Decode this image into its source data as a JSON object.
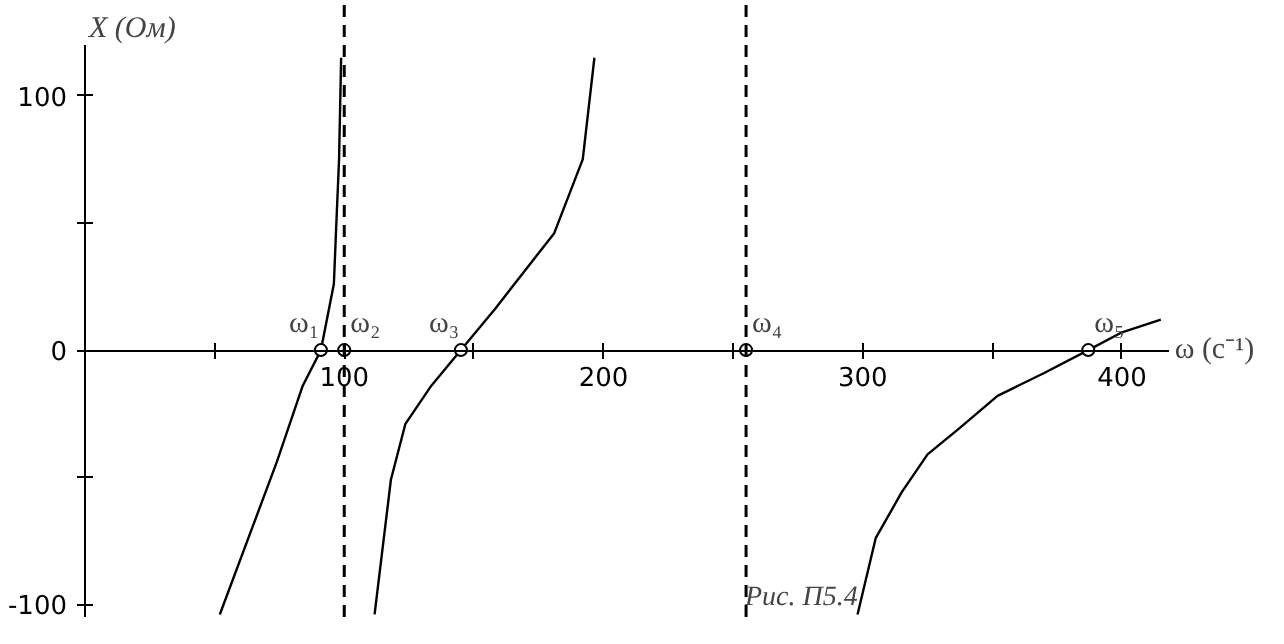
{
  "chart_data": {
    "type": "line",
    "xlabel": "ω (c⁻¹)",
    "ylabel": "X (Ом)",
    "annotations": [
      "Рис. П5.4",
      {
        "text": "ω₁",
        "x": 91,
        "y": 0
      },
      {
        "text": "ω₂",
        "x": 100,
        "y": 0
      },
      {
        "text": "ω₃",
        "x": 145,
        "y": 0
      },
      {
        "text": "ω₄",
        "x": 255,
        "y": 0
      },
      {
        "text": "ω₅",
        "x": 387,
        "y": 0
      }
    ],
    "series": [
      {
        "color": "#000000",
        "x": [
          52,
          74,
          84,
          91,
          96,
          97,
          98,
          98.8
        ],
        "values": [
          -104,
          -44,
          -14,
          0,
          26,
          51,
          75,
          115
        ]
      },
      {
        "color": "#000000",
        "x": [
          111.7,
          118,
          123.6,
          133.6,
          145,
          158,
          181,
          192,
          196.5
        ],
        "values": [
          -104,
          -51,
          -29,
          -14,
          0,
          16,
          46,
          75,
          115
        ]
      },
      {
        "color": "#000000",
        "x": [
          298,
          305,
          315,
          325,
          337,
          352,
          370,
          387,
          400,
          415
        ],
        "values": [
          -104,
          -74,
          -56,
          -41,
          -31,
          -18,
          -9,
          0,
          7,
          12
        ]
      }
    ],
    "ref_lines": [
      {
        "axis": "x",
        "value": 100,
        "line_style": "dashed",
        "color": "#000000"
      },
      {
        "axis": "x",
        "value": 255,
        "line_style": "dashed",
        "color": "#000000"
      }
    ],
    "xlim": [
      0,
      418
    ],
    "ylim": [
      -105,
      120
    ],
    "xticks": [
      {
        "value": 50,
        "label": null
      },
      100,
      {
        "value": 150,
        "label": null
      },
      200,
      {
        "value": 250,
        "label": null
      },
      300,
      {
        "value": 350,
        "label": null
      },
      400
    ],
    "yticks": [
      -100,
      {
        "value": -50,
        "label": null
      },
      0,
      {
        "value": 50,
        "label": null
      },
      100
    ],
    "grid": false,
    "marker": "none",
    "line_style": "solid"
  }
}
